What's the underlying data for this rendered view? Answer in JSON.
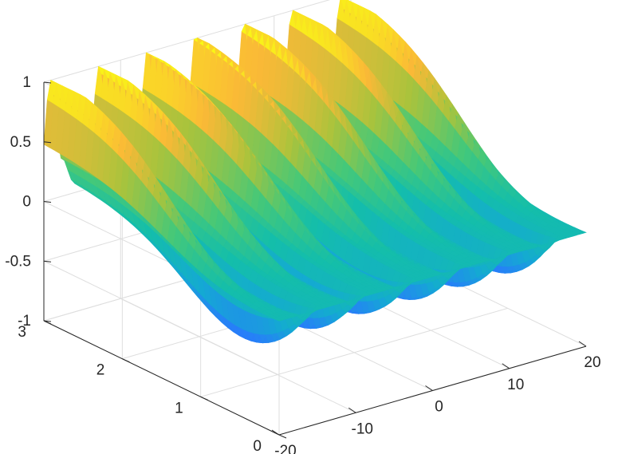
{
  "chart_data": {
    "type": "surface",
    "colormap": "parula",
    "title": "",
    "xlabel": "",
    "ylabel": "",
    "zlabel": "",
    "grid": true,
    "xlim": [
      -20,
      20
    ],
    "ylim": [
      0,
      3
    ],
    "zlim": [
      -1,
      1
    ],
    "x_ticks": [
      "-20",
      "-10",
      "0",
      "10",
      "20"
    ],
    "y_ticks": [
      "0",
      "1",
      "2",
      "3"
    ],
    "z_ticks": [
      "-1",
      "-0.5",
      "0",
      "0.5",
      "1"
    ],
    "surface": {
      "description": "z(x, t) peaks along oscillating ridges that grow with t; amplitude ~0 near t=0, reaching about +1/-1 at t=3",
      "ridge_spacing_x": 6.3,
      "z_max": 1,
      "z_min": -1
    }
  }
}
